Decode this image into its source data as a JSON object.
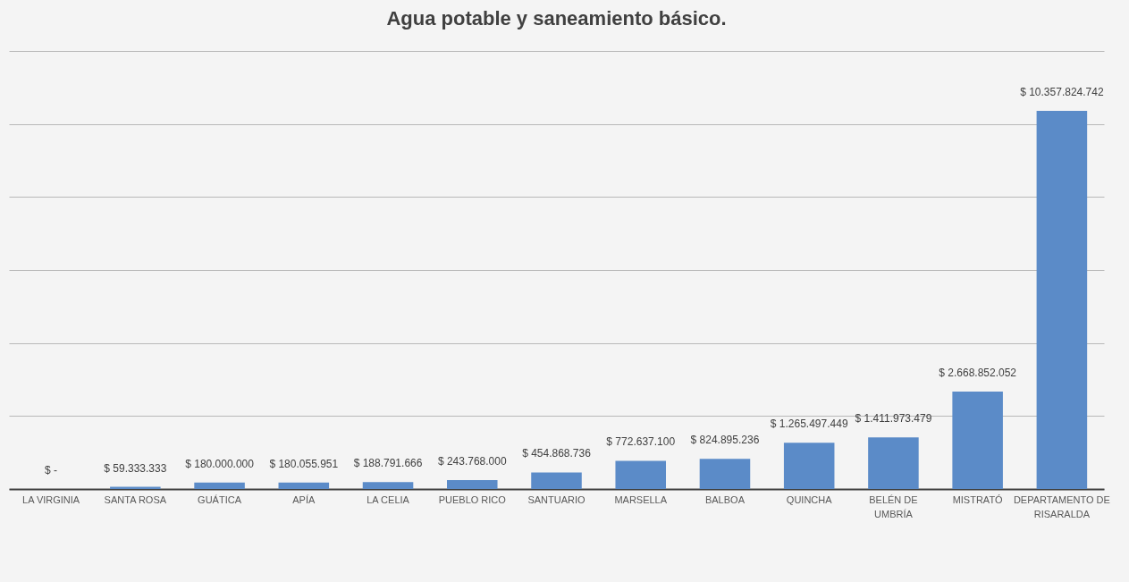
{
  "chart_data": {
    "type": "bar",
    "title": "Agua potable y saneamiento básico.",
    "categories": [
      "LA VIRGINIA",
      "SANTA ROSA",
      "GUÁTICA",
      "APÍA",
      "LA CELIA",
      "PUEBLO RICO",
      "SANTUARIO",
      "MARSELLA",
      "BALBOA",
      "QUINCHA",
      "BELÉN DE UMBRÍA",
      "MISTRATÓ",
      "DEPARTAMENTO DE RISARALDA"
    ],
    "values": [
      0,
      59333333,
      180000000,
      180055951,
      188791666,
      243768000,
      454868736,
      772637100,
      824895236,
      1265497449,
      1411973479,
      2668852052,
      10357824742
    ],
    "value_labels": [
      "$ -",
      "$ 59.333.333",
      "$ 180.000.000",
      "$ 180.055.951",
      "$ 188.791.666",
      "$ 243.768.000",
      "$ 454.868.736",
      "$ 772.637.100",
      "$ 824.895.236",
      "$ 1.265.497.449",
      "$ 1.411.973.479",
      "$ 2.668.852.052",
      "$ 10.357.824.742"
    ],
    "color": "#5b8bc8",
    "ylim": [
      0,
      12000000000
    ],
    "yticks": [
      {
        "value": 0,
        "label": null
      },
      {
        "value": 2000000000,
        "label": null
      },
      {
        "value": 4000000000,
        "label": null
      },
      {
        "value": 6000000000,
        "label": null
      },
      {
        "value": 8000000000,
        "label": null
      },
      {
        "value": 10000000000,
        "label": null
      },
      {
        "value": 12000000000,
        "label": null
      }
    ],
    "grid": "y",
    "tick_labels": "x"
  }
}
